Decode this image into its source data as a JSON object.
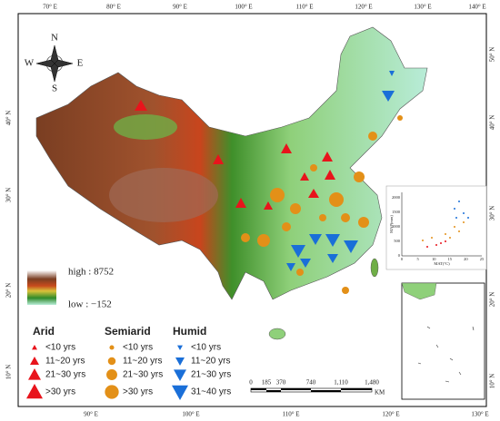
{
  "map": {
    "lon_labels_top": [
      "70° E",
      "80° E",
      "90° E",
      "100° E",
      "110° E",
      "120° E",
      "130° E",
      "140° E"
    ],
    "lon_labels_bottom": [
      "90° E",
      "100° E",
      "110° E",
      "120° E",
      "130° E"
    ],
    "lat_labels_left": [
      "40° N",
      "30° N",
      "20° N",
      "10° N"
    ],
    "lat_labels_right": [
      "50° N",
      "40° N",
      "30° N",
      "20° N",
      "10° N"
    ],
    "compass": {
      "n": "N",
      "s": "S",
      "e": "E",
      "w": "W"
    },
    "elevation_legend": {
      "high": "high : 8752",
      "low": "low : −152"
    },
    "legend": [
      {
        "title": "Arid",
        "items": [
          "<10 yrs",
          "11~20 yrs",
          "21~30 yrs",
          ">30 yrs"
        ]
      },
      {
        "title": "Semiarid",
        "items": [
          "<10 yrs",
          "11~20 yrs",
          "21~30 yrs",
          ">30 yrs"
        ]
      },
      {
        "title": "Humid",
        "items": [
          "<10 yrs",
          "11~20 yrs",
          "21~30 yrs",
          "31~40 yrs"
        ]
      }
    ],
    "scale_bar": {
      "labels": [
        "0",
        "185",
        "370",
        "740",
        "1,110",
        "1,480"
      ],
      "unit": "KM"
    },
    "inset": {
      "x_label": "MAT(°C)",
      "y_label": "MAP(mm)",
      "x_ticks": [
        "0",
        "5",
        "10",
        "15",
        "20",
        "25"
      ],
      "y_ticks": [
        "0",
        "500",
        "1000",
        "1500",
        "2000"
      ]
    }
  }
}
